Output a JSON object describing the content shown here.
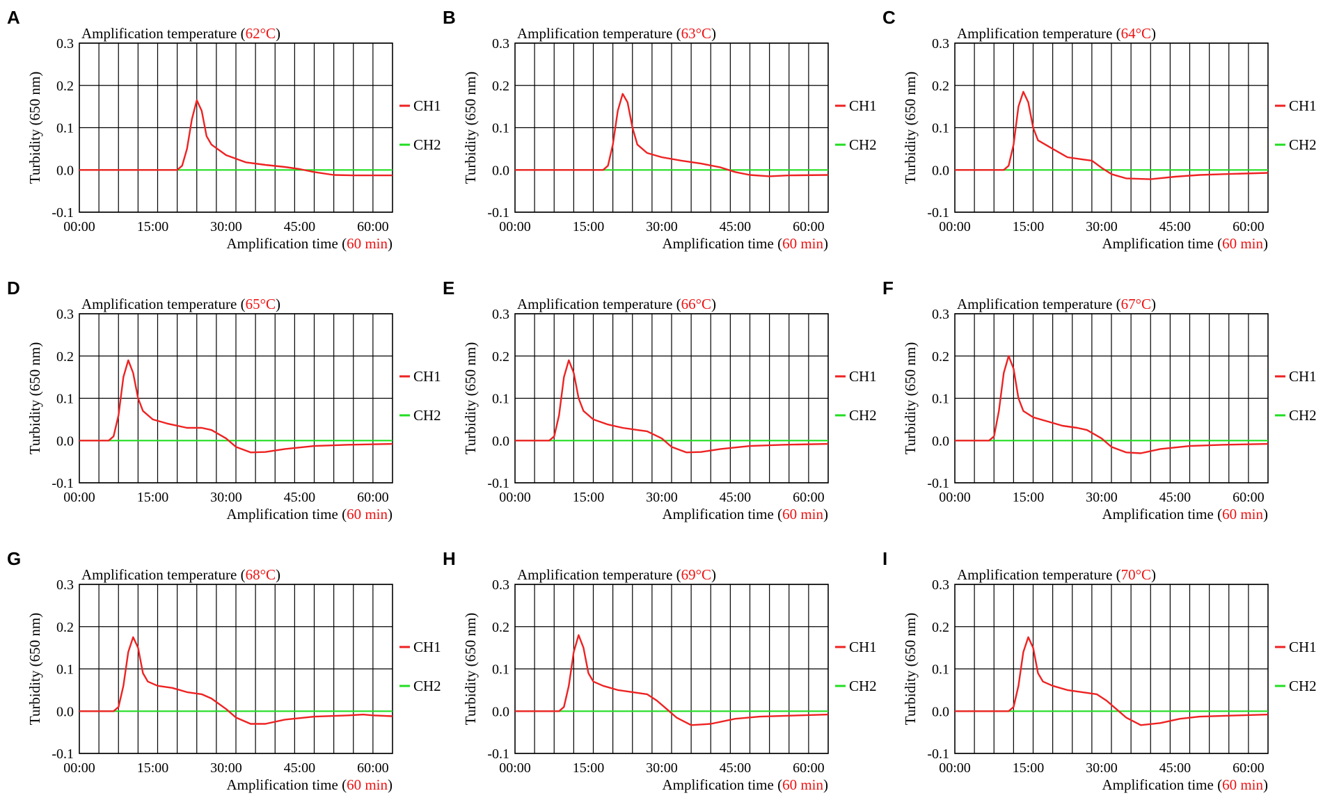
{
  "figure": {
    "layout": "3x3 grid",
    "colors": {
      "ch1": "#ee2222",
      "ch2": "#22dd22",
      "accent_text": "#ee1111",
      "grid": "#000000",
      "text": "#000000"
    }
  },
  "chart_data": [
    {
      "panel": "A",
      "type": "line",
      "title_prefix": "Amplification temperature (",
      "title_value": "62°C",
      "title_suffix": ")",
      "xlabel_prefix": "Amplification time (",
      "xlabel_value": "60 min",
      "xlabel_suffix": ")",
      "ylabel": "Turbidity (650 nm)",
      "xlim": [
        0,
        64
      ],
      "ylim": [
        -0.1,
        0.3
      ],
      "xticks": [
        0,
        15,
        30,
        45,
        60
      ],
      "xtick_labels": [
        "00:00",
        "15:00",
        "30:00",
        "45:00",
        "60:00"
      ],
      "yticks": [
        -0.1,
        0.0,
        0.1,
        0.2,
        0.3
      ],
      "ytick_labels": [
        "-0.1",
        "0.0",
        "0.1",
        "0.2",
        "0.3"
      ],
      "legend": [
        "CH1",
        "CH2"
      ],
      "legend_position": "right",
      "series": [
        {
          "name": "CH1",
          "x": [
            0,
            20,
            21,
            22,
            23,
            24,
            25,
            26,
            27,
            30,
            34,
            38,
            42,
            45,
            48,
            52,
            56,
            64
          ],
          "y": [
            0,
            0,
            0.01,
            0.05,
            0.12,
            0.165,
            0.14,
            0.08,
            0.06,
            0.035,
            0.018,
            0.012,
            0.007,
            0.002,
            -0.005,
            -0.012,
            -0.013,
            -0.013
          ]
        },
        {
          "name": "CH2",
          "x": [
            0,
            64
          ],
          "y": [
            0,
            0
          ]
        }
      ]
    },
    {
      "panel": "B",
      "type": "line",
      "title_prefix": "Amplification temperature (",
      "title_value": "63°C",
      "title_suffix": ")",
      "xlabel_prefix": "Amplification time (",
      "xlabel_value": "60 min",
      "xlabel_suffix": ")",
      "ylabel": "Turbidity (650 nm)",
      "xlim": [
        0,
        64
      ],
      "ylim": [
        -0.1,
        0.3
      ],
      "xticks": [
        0,
        15,
        30,
        45,
        60
      ],
      "xtick_labels": [
        "00:00",
        "15:00",
        "30:00",
        "45:00",
        "60:00"
      ],
      "yticks": [
        -0.1,
        0.0,
        0.1,
        0.2,
        0.3
      ],
      "ytick_labels": [
        "-0.1",
        "0.0",
        "0.1",
        "0.2",
        "0.3"
      ],
      "legend": [
        "CH1",
        "CH2"
      ],
      "legend_position": "right",
      "series": [
        {
          "name": "CH1",
          "x": [
            0,
            18,
            19,
            20,
            21,
            22,
            23,
            24,
            25,
            27,
            30,
            34,
            38,
            42,
            45,
            48,
            52,
            56,
            64
          ],
          "y": [
            0,
            0,
            0.01,
            0.06,
            0.14,
            0.18,
            0.16,
            0.1,
            0.06,
            0.04,
            0.03,
            0.022,
            0.015,
            0.006,
            -0.005,
            -0.012,
            -0.015,
            -0.013,
            -0.012
          ]
        },
        {
          "name": "CH2",
          "x": [
            0,
            64
          ],
          "y": [
            0,
            0
          ]
        }
      ]
    },
    {
      "panel": "C",
      "type": "line",
      "title_prefix": "Amplification temperature (",
      "title_value": "64°C",
      "title_suffix": ")",
      "xlabel_prefix": "Amplification time (",
      "xlabel_value": "60 min",
      "xlabel_suffix": ")",
      "ylabel": "Turbidity (650 nm)",
      "xlim": [
        0,
        64
      ],
      "ylim": [
        -0.1,
        0.3
      ],
      "xticks": [
        0,
        15,
        30,
        45,
        60
      ],
      "xtick_labels": [
        "00:00",
        "15:00",
        "30:00",
        "45:00",
        "60:00"
      ],
      "yticks": [
        -0.1,
        0.0,
        0.1,
        0.2,
        0.3
      ],
      "ytick_labels": [
        "-0.1",
        "0.0",
        "0.1",
        "0.2",
        "0.3"
      ],
      "legend": [
        "CH1",
        "CH2"
      ],
      "legend_position": "right",
      "series": [
        {
          "name": "CH1",
          "x": [
            0,
            10,
            11,
            12,
            13,
            14,
            15,
            16,
            17,
            20,
            23,
            26,
            28,
            30,
            32,
            35,
            40,
            45,
            50,
            55,
            64
          ],
          "y": [
            0,
            0,
            0.01,
            0.06,
            0.15,
            0.185,
            0.16,
            0.1,
            0.07,
            0.05,
            0.03,
            0.025,
            0.022,
            0.005,
            -0.01,
            -0.02,
            -0.022,
            -0.016,
            -0.012,
            -0.01,
            -0.007
          ]
        },
        {
          "name": "CH2",
          "x": [
            0,
            64
          ],
          "y": [
            0,
            0
          ]
        }
      ]
    },
    {
      "panel": "D",
      "type": "line",
      "title_prefix": "Amplification temperature (",
      "title_value": "65°C",
      "title_suffix": ")",
      "xlabel_prefix": "Amplification time (",
      "xlabel_value": "60 min",
      "xlabel_suffix": ")",
      "ylabel": "Turbidity (650 nm)",
      "xlim": [
        0,
        64
      ],
      "ylim": [
        -0.1,
        0.3
      ],
      "xticks": [
        0,
        15,
        30,
        45,
        60
      ],
      "xtick_labels": [
        "00:00",
        "15:00",
        "30:00",
        "45:00",
        "60:00"
      ],
      "yticks": [
        -0.1,
        0.0,
        0.1,
        0.2,
        0.3
      ],
      "ytick_labels": [
        "-0.1",
        "0.0",
        "0.1",
        "0.2",
        "0.3"
      ],
      "legend": [
        "CH1",
        "CH2"
      ],
      "legend_position": "right",
      "series": [
        {
          "name": "CH1",
          "x": [
            0,
            6,
            7,
            8,
            9,
            10,
            11,
            12,
            13,
            15,
            18,
            22,
            25,
            27,
            30,
            32,
            35,
            38,
            42,
            48,
            55,
            64
          ],
          "y": [
            0,
            0,
            0.01,
            0.06,
            0.15,
            0.19,
            0.16,
            0.1,
            0.07,
            0.05,
            0.04,
            0.03,
            0.03,
            0.025,
            0.005,
            -0.015,
            -0.028,
            -0.027,
            -0.02,
            -0.013,
            -0.01,
            -0.008
          ]
        },
        {
          "name": "CH2",
          "x": [
            0,
            64
          ],
          "y": [
            0,
            0
          ]
        }
      ]
    },
    {
      "panel": "E",
      "type": "line",
      "title_prefix": "Amplification temperature (",
      "title_value": "66°C",
      "title_suffix": ")",
      "xlabel_prefix": "Amplification time (",
      "xlabel_value": "60 min",
      "xlabel_suffix": ")",
      "ylabel": "Turbidity (650 nm)",
      "xlim": [
        0,
        64
      ],
      "ylim": [
        -0.1,
        0.3
      ],
      "xticks": [
        0,
        15,
        30,
        45,
        60
      ],
      "xtick_labels": [
        "00:00",
        "15:00",
        "30:00",
        "45:00",
        "60:00"
      ],
      "yticks": [
        -0.1,
        0.0,
        0.1,
        0.2,
        0.3
      ],
      "ytick_labels": [
        "-0.1",
        "0.0",
        "0.1",
        "0.2",
        "0.3"
      ],
      "legend": [
        "CH1",
        "CH2"
      ],
      "legend_position": "right",
      "series": [
        {
          "name": "CH1",
          "x": [
            0,
            7,
            8,
            9,
            10,
            11,
            12,
            13,
            14,
            16,
            19,
            22,
            25,
            27,
            30,
            32,
            35,
            38,
            42,
            48,
            55,
            64
          ],
          "y": [
            0,
            0,
            0.01,
            0.06,
            0.15,
            0.19,
            0.16,
            0.1,
            0.07,
            0.05,
            0.038,
            0.03,
            0.025,
            0.022,
            0.005,
            -0.015,
            -0.028,
            -0.027,
            -0.02,
            -0.013,
            -0.01,
            -0.008
          ]
        },
        {
          "name": "CH2",
          "x": [
            0,
            64
          ],
          "y": [
            0,
            0
          ]
        }
      ]
    },
    {
      "panel": "F",
      "type": "line",
      "title_prefix": "Amplification temperature (",
      "title_value": "67°C",
      "title_suffix": ")",
      "xlabel_prefix": "Amplification time (",
      "xlabel_value": "60 min",
      "xlabel_suffix": ")",
      "ylabel": "Turbidity (650 nm)",
      "xlim": [
        0,
        64
      ],
      "ylim": [
        -0.1,
        0.3
      ],
      "xticks": [
        0,
        15,
        30,
        45,
        60
      ],
      "xtick_labels": [
        "00:00",
        "15:00",
        "30:00",
        "45:00",
        "60:00"
      ],
      "yticks": [
        -0.1,
        0.0,
        0.1,
        0.2,
        0.3
      ],
      "ytick_labels": [
        "-0.1",
        "0.0",
        "0.1",
        "0.2",
        "0.3"
      ],
      "legend": [
        "CH1",
        "CH2"
      ],
      "legend_position": "right",
      "series": [
        {
          "name": "CH1",
          "x": [
            0,
            7,
            8,
            9,
            10,
            11,
            12,
            13,
            14,
            16,
            19,
            22,
            25,
            27,
            30,
            32,
            35,
            38,
            42,
            48,
            55,
            64
          ],
          "y": [
            0,
            0,
            0.01,
            0.07,
            0.16,
            0.2,
            0.17,
            0.1,
            0.07,
            0.055,
            0.045,
            0.035,
            0.03,
            0.025,
            0.005,
            -0.015,
            -0.028,
            -0.03,
            -0.02,
            -0.013,
            -0.01,
            -0.008
          ]
        },
        {
          "name": "CH2",
          "x": [
            0,
            64
          ],
          "y": [
            0,
            0
          ]
        }
      ]
    },
    {
      "panel": "G",
      "type": "line",
      "title_prefix": "Amplification temperature (",
      "title_value": "68°C",
      "title_suffix": ")",
      "xlabel_prefix": "Amplification time (",
      "xlabel_value": "60 min",
      "xlabel_suffix": ")",
      "ylabel": "Turbidity (650 nm)",
      "xlim": [
        0,
        64
      ],
      "ylim": [
        -0.1,
        0.3
      ],
      "xticks": [
        0,
        15,
        30,
        45,
        60
      ],
      "xtick_labels": [
        "00:00",
        "15:00",
        "30:00",
        "45:00",
        "60:00"
      ],
      "yticks": [
        -0.1,
        0.0,
        0.1,
        0.2,
        0.3
      ],
      "ytick_labels": [
        "-0.1",
        "0.0",
        "0.1",
        "0.2",
        "0.3"
      ],
      "legend": [
        "CH1",
        "CH2"
      ],
      "legend_position": "right",
      "series": [
        {
          "name": "CH1",
          "x": [
            0,
            7,
            8,
            9,
            10,
            11,
            12,
            13,
            14,
            16,
            19,
            22,
            25,
            27,
            30,
            32,
            35,
            38,
            42,
            48,
            55,
            58,
            60,
            64
          ],
          "y": [
            0,
            0,
            0.01,
            0.06,
            0.14,
            0.175,
            0.15,
            0.09,
            0.07,
            0.06,
            0.055,
            0.045,
            0.04,
            0.03,
            0.005,
            -0.015,
            -0.03,
            -0.03,
            -0.02,
            -0.013,
            -0.01,
            -0.008,
            -0.01,
            -0.012
          ]
        },
        {
          "name": "CH2",
          "x": [
            0,
            64
          ],
          "y": [
            0,
            0
          ]
        }
      ]
    },
    {
      "panel": "H",
      "type": "line",
      "title_prefix": "Amplification temperature (",
      "title_value": "69°C",
      "title_suffix": ")",
      "xlabel_prefix": "Amplification time (",
      "xlabel_value": "60 min",
      "xlabel_suffix": ")",
      "ylabel": "Turbidity (650 nm)",
      "xlim": [
        0,
        64
      ],
      "ylim": [
        -0.1,
        0.3
      ],
      "xticks": [
        0,
        15,
        30,
        45,
        60
      ],
      "xtick_labels": [
        "00:00",
        "15:00",
        "30:00",
        "45:00",
        "60:00"
      ],
      "yticks": [
        -0.1,
        0.0,
        0.1,
        0.2,
        0.3
      ],
      "ytick_labels": [
        "-0.1",
        "0.0",
        "0.1",
        "0.2",
        "0.3"
      ],
      "legend": [
        "CH1",
        "CH2"
      ],
      "legend_position": "right",
      "series": [
        {
          "name": "CH1",
          "x": [
            0,
            9,
            10,
            11,
            12,
            13,
            14,
            15,
            16,
            18,
            21,
            24,
            27,
            29,
            31,
            33,
            36,
            40,
            45,
            50,
            58,
            64
          ],
          "y": [
            0,
            0,
            0.01,
            0.06,
            0.14,
            0.18,
            0.15,
            0.09,
            0.07,
            0.06,
            0.05,
            0.045,
            0.04,
            0.025,
            0.005,
            -0.015,
            -0.033,
            -0.03,
            -0.018,
            -0.013,
            -0.01,
            -0.008
          ]
        },
        {
          "name": "CH2",
          "x": [
            0,
            64
          ],
          "y": [
            0,
            0
          ]
        }
      ]
    },
    {
      "panel": "I",
      "type": "line",
      "title_prefix": "Amplification temperature (",
      "title_value": "70°C",
      "title_suffix": ")",
      "xlabel_prefix": "Amplification time (",
      "xlabel_value": "60 min",
      "xlabel_suffix": ")",
      "ylabel": "Turbidity (650 nm)",
      "xlim": [
        0,
        64
      ],
      "ylim": [
        -0.1,
        0.3
      ],
      "xticks": [
        0,
        15,
        30,
        45,
        60
      ],
      "xtick_labels": [
        "00:00",
        "15:00",
        "30:00",
        "45:00",
        "60:00"
      ],
      "yticks": [
        -0.1,
        0.0,
        0.1,
        0.2,
        0.3
      ],
      "ytick_labels": [
        "-0.1",
        "0.0",
        "0.1",
        "0.2",
        "0.3"
      ],
      "legend": [
        "CH1",
        "CH2"
      ],
      "legend_position": "right",
      "series": [
        {
          "name": "CH1",
          "x": [
            0,
            11,
            12,
            13,
            14,
            15,
            16,
            17,
            18,
            20,
            23,
            26,
            29,
            31,
            33,
            35,
            38,
            42,
            46,
            50,
            58,
            64
          ],
          "y": [
            0,
            0,
            0.01,
            0.06,
            0.14,
            0.175,
            0.15,
            0.09,
            0.07,
            0.06,
            0.05,
            0.045,
            0.04,
            0.025,
            0.005,
            -0.015,
            -0.033,
            -0.028,
            -0.018,
            -0.013,
            -0.01,
            -0.008
          ]
        },
        {
          "name": "CH2",
          "x": [
            0,
            64
          ],
          "y": [
            0,
            0
          ]
        }
      ]
    }
  ]
}
